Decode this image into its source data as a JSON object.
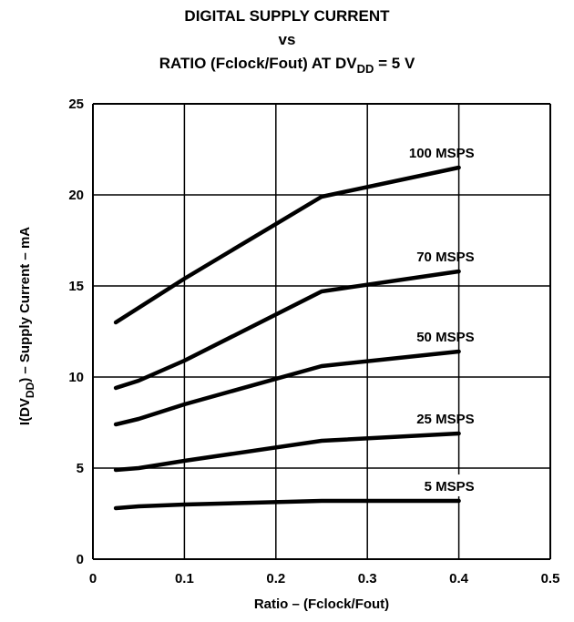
{
  "title": {
    "line1": "DIGITAL SUPPLY CURRENT",
    "line2": "vs",
    "line3_pre": "RATIO (Fclock/Fout) AT DV",
    "line3_sub": "DD",
    "line3_post": " = 5 V"
  },
  "chart_data": {
    "type": "line",
    "title": "DIGITAL SUPPLY CURRENT vs RATIO (Fclock/Fout) AT DVDD = 5 V",
    "xlabel": "Ratio – (Fclock/Fout)",
    "ylabel_pre": "I(DV",
    "ylabel_sub": "DD",
    "ylabel_post": ") – Supply Current – mA",
    "xlim": [
      0,
      0.5
    ],
    "ylim": [
      0,
      25
    ],
    "xticks": [
      "0",
      "0.1",
      "0.2",
      "0.3",
      "0.4",
      "0.5"
    ],
    "yticks": [
      "0",
      "5",
      "10",
      "15",
      "20",
      "25"
    ],
    "grid": true,
    "series": [
      {
        "name": "100 MSPS",
        "x": [
          0.025,
          0.05,
          0.1,
          0.25,
          0.4
        ],
        "y": [
          13.0,
          13.8,
          15.4,
          19.9,
          21.5
        ]
      },
      {
        "name": "70 MSPS",
        "x": [
          0.025,
          0.05,
          0.1,
          0.25,
          0.4
        ],
        "y": [
          9.4,
          9.8,
          10.9,
          14.7,
          15.8
        ]
      },
      {
        "name": "50 MSPS",
        "x": [
          0.025,
          0.05,
          0.1,
          0.25,
          0.4
        ],
        "y": [
          7.4,
          7.7,
          8.5,
          10.6,
          11.4
        ]
      },
      {
        "name": "25 MSPS",
        "x": [
          0.025,
          0.05,
          0.1,
          0.25,
          0.4
        ],
        "y": [
          4.9,
          5.0,
          5.4,
          6.5,
          6.9
        ]
      },
      {
        "name": "5 MSPS",
        "x": [
          0.025,
          0.05,
          0.1,
          0.25,
          0.4
        ],
        "y": [
          2.8,
          2.9,
          3.0,
          3.2,
          3.2
        ]
      }
    ]
  }
}
